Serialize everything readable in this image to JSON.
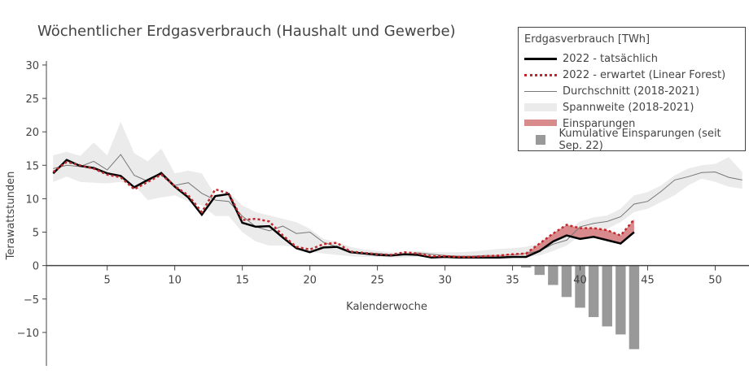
{
  "chart_data": {
    "type": "line",
    "title": "Wöchentlicher Erdgasverbrauch (Haushalt und Gewerbe)",
    "xlabel": "Kalenderwoche",
    "ylabel": "Terawattstunden",
    "xlim": [
      0.5,
      52.5
    ],
    "ylim": [
      -15,
      30.6
    ],
    "xticks": [
      5,
      10,
      15,
      20,
      25,
      30,
      35,
      40,
      45,
      50
    ],
    "yticks": [
      30,
      25,
      20,
      15,
      10,
      5,
      0,
      -5,
      -10
    ],
    "ytick_labels": [
      "30",
      "25",
      "20",
      "15",
      "10",
      "5",
      "0",
      "−5",
      "−10"
    ],
    "grid": false,
    "legend_title": "Erdgasverbrauch [TWh]",
    "legend_position": "top-right",
    "series": [
      {
        "name": "2022 - tatsächlich",
        "color": "#000000",
        "x_start": 1,
        "values": [
          13.8,
          15.8,
          14.9,
          14.6,
          13.8,
          13.4,
          11.7,
          12.8,
          13.8,
          11.8,
          10.2,
          7.6,
          10.4,
          10.7,
          6.4,
          5.8,
          5.9,
          4.2,
          2.6,
          2.0,
          2.7,
          2.8,
          2.0,
          1.8,
          1.6,
          1.5,
          1.7,
          1.6,
          1.2,
          1.3,
          1.2,
          1.2,
          1.2,
          1.2,
          1.3,
          1.3,
          2.2,
          3.6,
          4.5,
          4.0,
          4.3,
          3.8,
          3.3,
          5.0
        ]
      },
      {
        "name": "2022 - erwartet (Linear Forest)",
        "color": "#c0282d",
        "x_start": 1,
        "values": [
          14.0,
          15.5,
          15.0,
          14.5,
          13.6,
          13.2,
          11.4,
          12.5,
          13.6,
          11.9,
          10.5,
          8.0,
          11.4,
          10.8,
          6.8,
          7.0,
          6.6,
          4.5,
          2.8,
          2.4,
          3.2,
          3.4,
          2.1,
          1.9,
          1.7,
          1.6,
          2.0,
          1.8,
          1.4,
          1.4,
          1.3,
          1.3,
          1.4,
          1.5,
          1.7,
          1.8,
          3.3,
          4.8,
          6.1,
          5.6,
          5.6,
          5.3,
          4.5,
          6.9
        ]
      },
      {
        "name": "Durchschnitt (2018-2021)",
        "color": "#777777",
        "x_start": 1,
        "values": [
          14.5,
          15.0,
          14.8,
          15.6,
          14.3,
          16.6,
          13.5,
          12.6,
          14.0,
          12.0,
          12.4,
          10.8,
          9.8,
          9.6,
          7.4,
          5.8,
          5.2,
          5.9,
          4.8,
          5.0,
          3.5,
          2.8,
          2.1,
          1.9,
          1.8,
          1.6,
          1.6,
          1.9,
          1.7,
          1.5,
          1.4,
          1.4,
          1.5,
          1.5,
          1.6,
          1.8,
          2.2,
          3.2,
          3.8,
          5.8,
          6.3,
          6.6,
          7.3,
          9.2,
          9.6,
          11.1,
          12.8,
          13.3,
          13.9,
          14.0,
          13.2,
          12.8
        ]
      }
    ],
    "range": {
      "name": "Spannweite (2018-2021)",
      "color": "#ebebeb",
      "x_start": 1,
      "upper": [
        16.5,
        17.0,
        16.4,
        18.4,
        16.5,
        21.5,
        16.8,
        15.6,
        17.5,
        13.8,
        14.2,
        13.8,
        10.5,
        11.0,
        9.0,
        8.0,
        7.5,
        7.0,
        6.5,
        5.5,
        4.0,
        3.5,
        2.8,
        2.4,
        2.2,
        2.0,
        2.0,
        2.2,
        2.0,
        2.0,
        2.0,
        2.1,
        2.3,
        2.5,
        2.6,
        2.8,
        3.3,
        4.0,
        5.2,
        6.6,
        7.2,
        7.5,
        8.5,
        10.5,
        11.0,
        12.0,
        13.5,
        14.5,
        15.0,
        15.2,
        16.2,
        14.0
      ],
      "lower": [
        12.5,
        13.3,
        12.5,
        12.4,
        12.3,
        12.5,
        12.0,
        9.8,
        10.2,
        10.5,
        9.6,
        9.0,
        7.4,
        7.4,
        5.0,
        3.6,
        3.0,
        3.0,
        2.8,
        2.1,
        1.8,
        1.6,
        1.4,
        1.3,
        1.3,
        1.2,
        1.2,
        1.3,
        1.2,
        1.1,
        1.1,
        1.1,
        1.2,
        1.2,
        1.2,
        1.3,
        1.5,
        2.2,
        3.0,
        4.5,
        5.0,
        5.5,
        6.5,
        8.0,
        8.5,
        9.5,
        10.5,
        12.0,
        13.0,
        12.5,
        11.8,
        11.5
      ]
    },
    "savings": {
      "name": "Einsparungen",
      "color": "#d98a8c",
      "x_from": 36,
      "x_to": 44
    },
    "bars": {
      "name": "Kumulative Einsparungen (seit Sep. 22)",
      "color": "#999999",
      "x": [
        36,
        37,
        38,
        39,
        40,
        41,
        42,
        43,
        44
      ],
      "values": [
        -0.3,
        -1.4,
        -2.9,
        -4.7,
        -6.3,
        -7.7,
        -9.1,
        -10.3,
        -12.5
      ]
    }
  }
}
